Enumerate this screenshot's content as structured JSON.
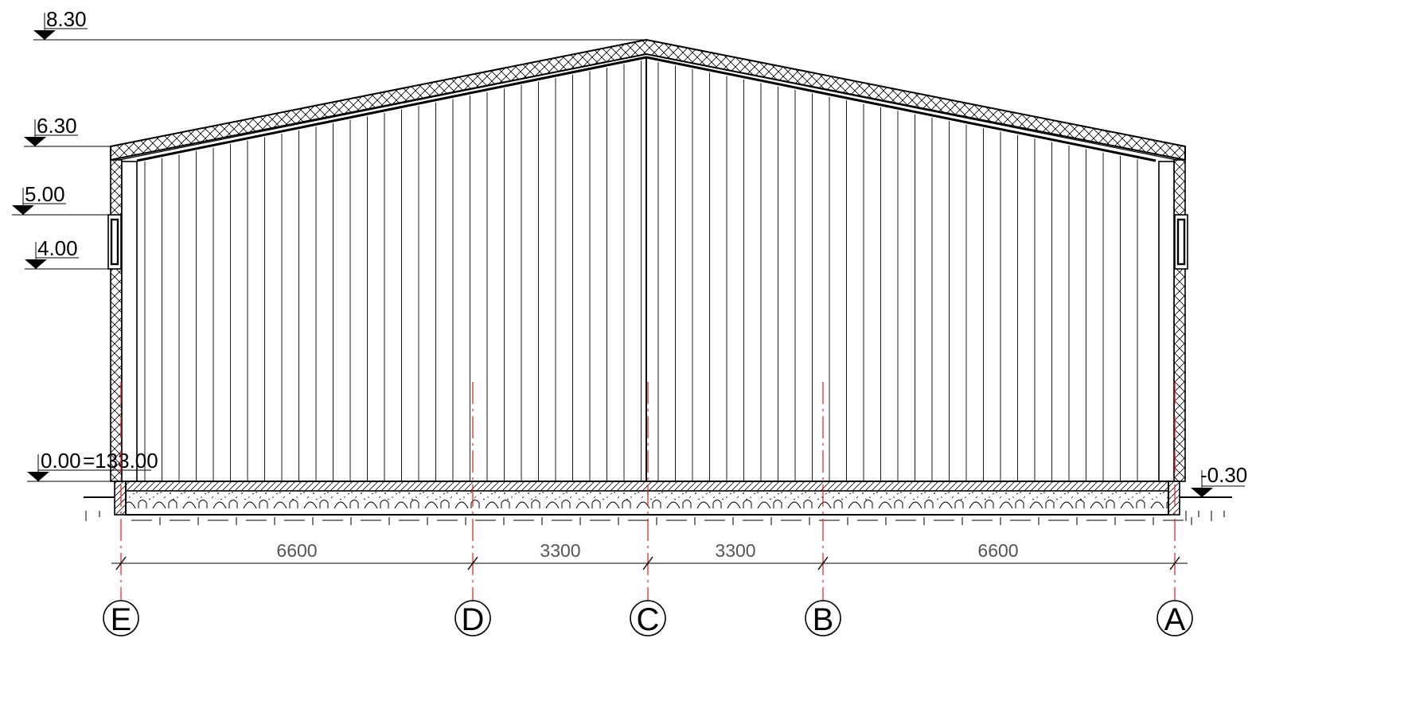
{
  "levels": {
    "ridge": "8.30",
    "eave": "6.30",
    "window_top": "5.00",
    "window_bottom": "4.00",
    "floor": "0.00",
    "floor_abs": "=133.00",
    "ground": "-0.30"
  },
  "dimensions": [
    "6600",
    "3300",
    "3300",
    "6600"
  ],
  "axes": [
    "E",
    "D",
    "C",
    "B",
    "A"
  ],
  "colors": {
    "line": "#000000",
    "axis_line": "#e01e1e",
    "dimension": "#555555"
  }
}
